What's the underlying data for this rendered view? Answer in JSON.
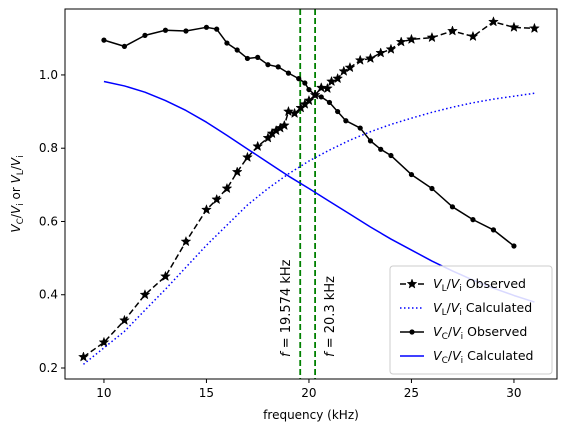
{
  "chart_data": {
    "type": "line",
    "xlabel": "frequency (kHz)",
    "ylabel": "V_C/V_i or V_L/V_i",
    "xlim": [
      8.1,
      32.1
    ],
    "ylim": [
      0.17,
      1.18
    ],
    "xticks": [
      10,
      15,
      20,
      25,
      30
    ],
    "yticks": [
      0.2,
      0.4,
      0.6,
      0.8,
      1.0
    ],
    "xtick_labels": [
      "10",
      "15",
      "20",
      "25",
      "30"
    ],
    "ytick_labels": [
      "0.2",
      "0.4",
      "0.6",
      "0.8",
      "1.0"
    ],
    "grid": false,
    "legend_position": "lower right",
    "vlines": [
      {
        "x": 19.574,
        "label": "f = 19.574 kHz",
        "color": "#008000",
        "style": "dashed"
      },
      {
        "x": 20.3,
        "label": "f = 20.3 kHz",
        "color": "#008000",
        "style": "dashed"
      }
    ],
    "series": [
      {
        "name": "V_L/V_i Observed",
        "color": "#000000",
        "style": "dashed",
        "marker": "star",
        "x": [
          9,
          10,
          11,
          12,
          13,
          14,
          15,
          15.5,
          16,
          16.5,
          17,
          17.5,
          18,
          18.2,
          18.4,
          18.6,
          18.8,
          19,
          19.3,
          19.6,
          19.8,
          20,
          20.3,
          20.6,
          20.9,
          21.1,
          21.4,
          21.7,
          22,
          22.5,
          23,
          23.5,
          24,
          24.5,
          25,
          26,
          27,
          28,
          29,
          30,
          31
        ],
        "y": [
          0.23,
          0.27,
          0.33,
          0.4,
          0.45,
          0.545,
          0.632,
          0.66,
          0.69,
          0.735,
          0.775,
          0.805,
          0.828,
          0.84,
          0.848,
          0.855,
          0.862,
          0.9,
          0.895,
          0.91,
          0.92,
          0.93,
          0.945,
          0.965,
          0.963,
          0.982,
          0.99,
          1.01,
          1.02,
          1.04,
          1.045,
          1.06,
          1.07,
          1.09,
          1.097,
          1.102,
          1.12,
          1.105,
          1.145,
          1.13,
          1.127
        ]
      },
      {
        "name": "V_L/V_i Calculated",
        "color": "#0000ff",
        "style": "dotted",
        "marker": "none",
        "x": [
          9,
          10,
          11,
          12,
          13,
          14,
          15,
          16,
          17,
          18,
          19,
          20,
          21,
          22,
          23,
          24,
          25,
          26,
          27,
          28,
          29,
          30,
          31
        ],
        "y": [
          0.21,
          0.255,
          0.3,
          0.358,
          0.415,
          0.475,
          0.535,
          0.59,
          0.645,
          0.69,
          0.73,
          0.765,
          0.795,
          0.822,
          0.845,
          0.865,
          0.882,
          0.898,
          0.912,
          0.924,
          0.934,
          0.942,
          0.95
        ]
      },
      {
        "name": "V_C/V_i Observed",
        "color": "#000000",
        "style": "solid",
        "marker": "dot",
        "x": [
          10,
          11,
          12,
          13,
          14,
          15,
          15.5,
          16,
          16.5,
          17,
          17.5,
          18,
          18.5,
          19,
          19.5,
          19.8,
          20,
          20.3,
          20.6,
          21,
          21.4,
          21.8,
          22.5,
          23,
          23.5,
          24,
          25,
          26,
          27,
          28,
          29,
          30
        ],
        "y": [
          1.095,
          1.078,
          1.108,
          1.122,
          1.12,
          1.13,
          1.125,
          1.087,
          1.068,
          1.045,
          1.048,
          1.028,
          1.022,
          1.005,
          0.99,
          0.978,
          0.96,
          0.945,
          0.94,
          0.925,
          0.9,
          0.875,
          0.855,
          0.82,
          0.797,
          0.78,
          0.728,
          0.69,
          0.64,
          0.605,
          0.577,
          0.533
        ]
      },
      {
        "name": "V_C/V_i Calculated",
        "color": "#0000ff",
        "style": "solid",
        "marker": "none",
        "x": [
          10,
          11,
          12,
          13,
          14,
          15,
          16,
          17,
          18,
          19,
          20,
          21,
          22,
          23,
          24,
          25,
          26,
          27,
          28,
          29,
          30,
          31
        ],
        "y": [
          0.982,
          0.97,
          0.953,
          0.93,
          0.903,
          0.871,
          0.835,
          0.798,
          0.761,
          0.724,
          0.69,
          0.655,
          0.62,
          0.585,
          0.552,
          0.522,
          0.492,
          0.465,
          0.44,
          0.418,
          0.398,
          0.38
        ]
      }
    ]
  }
}
